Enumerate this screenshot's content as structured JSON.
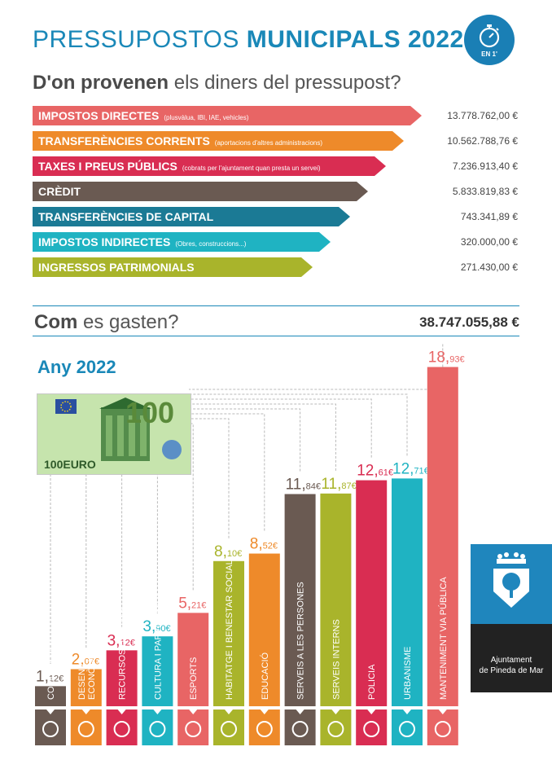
{
  "header": {
    "title_part1": "PRESSUPOSTOS",
    "title_part2": "MUNICIPALS 2022",
    "badge_label": "EN 1'",
    "icon": "stopwatch-icon"
  },
  "income": {
    "question_part1": "D'on provenen",
    "question_part2": "els diners del pressupost?",
    "items": [
      {
        "label": "IMPOSTOS DIRECTES",
        "note": "(plusvàlua, IBI, IAE, vehicles)",
        "amount": "13.778.762,00 €",
        "color": "#e86565"
      },
      {
        "label": "TRANSFERÈNCIES CORRENTS",
        "note": "(aportacions d'altres administracions)",
        "amount": "10.562.788,76 €",
        "color": "#ee8a2a"
      },
      {
        "label": "TAXES I PREUS PÚBLICS",
        "note": "(cobrats per l'ajuntament quan presta un servei)",
        "amount": "7.236.913,40 €",
        "color": "#d92d52"
      },
      {
        "label": "CRÈDIT",
        "note": "",
        "amount": "5.833.819,83 €",
        "color": "#6a5a52"
      },
      {
        "label": "TRANSFERÈNCIES DE CAPITAL",
        "note": "",
        "amount": "743.341,89 €",
        "color": "#1b7a95"
      },
      {
        "label": "IMPOSTOS INDIRECTES",
        "note": "(Obres, construccions...)",
        "amount": "320.000,00 €",
        "color": "#1fb3c2"
      },
      {
        "label": "INGRESSOS PATRIMONIALS",
        "note": "",
        "amount": "271.430,00 €",
        "color": "#a9b42b"
      }
    ]
  },
  "spending": {
    "question_part1": "Com",
    "question_part2": "es gasten?",
    "total": "38.747.055,88 €",
    "year_label": "Any 2022"
  },
  "chart_data": {
    "type": "bar",
    "title": "Any 2022",
    "categories": [
      "COMUNICACIÓ",
      "DESENVOLUPAMENT ECONÒMIC",
      "RECURSOS HUMANS",
      "CULTURA I PARTICIPACIÓ",
      "ESPORTS",
      "HABITATGE I BENESTAR SOCIAL",
      "EDUCACIÓ",
      "SERVEIS A LES PERSONES",
      "SERVEIS INTERNS",
      "POLICIA",
      "URBANISME",
      "MANTENIMENT VIA PÚBLICA"
    ],
    "values": [
      1.12,
      2.07,
      3.12,
      3.9,
      5.21,
      8.1,
      8.52,
      11.84,
      11.87,
      12.61,
      12.71,
      18.93
    ],
    "value_labels": [
      {
        "int": "1,",
        "dec": "12€"
      },
      {
        "int": "2,",
        "dec": "07€"
      },
      {
        "int": "3,",
        "dec": "12€"
      },
      {
        "int": "3,",
        "dec": "90€"
      },
      {
        "int": "5,",
        "dec": "21€"
      },
      {
        "int": "8,",
        "dec": "10€"
      },
      {
        "int": "8,",
        "dec": "52€"
      },
      {
        "int": "11,",
        "dec": "84€"
      },
      {
        "int": "11,",
        "dec": "87€"
      },
      {
        "int": "12,",
        "dec": "61€"
      },
      {
        "int": "12,",
        "dec": "71€"
      },
      {
        "int": "18,",
        "dec": "93€"
      }
    ],
    "colors": [
      "#6a5a52",
      "#ee8a2a",
      "#d92d52",
      "#1fb3c2",
      "#e86565",
      "#a9b42b",
      "#ee8a2a",
      "#6a5a52",
      "#a9b42b",
      "#d92d52",
      "#1fb3c2",
      "#e86565"
    ],
    "icons": [
      "speech-bubble-icon",
      "bar-growth-icon",
      "org-chart-icon",
      "theatre-masks-icon",
      "trophy-icon",
      "house-people-icon",
      "graduation-cap-icon",
      "heart-people-icon",
      "building-columns-icon",
      "police-badge-icon",
      "house-icon",
      "tactics-board-icon"
    ],
    "grid": false
  },
  "banknote": {
    "value": "100",
    "currency_label": "100EURO"
  },
  "municipality": {
    "line1": "Ajuntament",
    "line2": "de Pineda de Mar",
    "logo_icon": "tree-shield-icon"
  }
}
